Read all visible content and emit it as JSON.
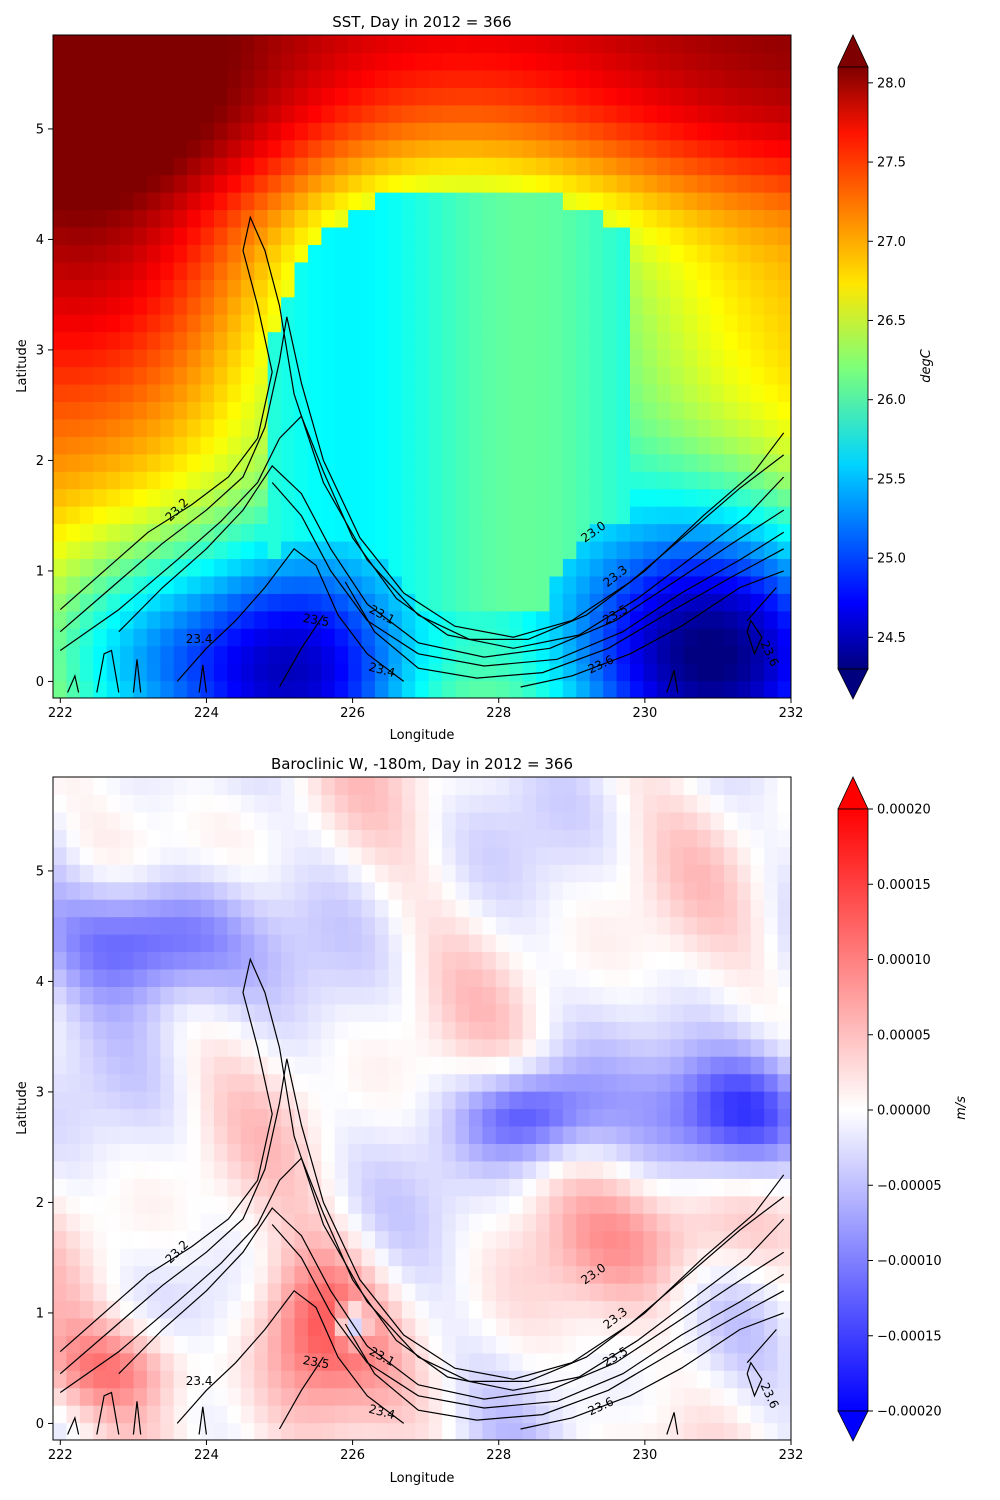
{
  "chart_data": [
    {
      "type": "heatmap",
      "title": "SST, Day in 2012 = 366",
      "xlabel": "Longitude",
      "ylabel": "Latitude",
      "xlim": [
        221.9,
        232.0
      ],
      "ylim": [
        -0.15,
        5.85
      ],
      "xticks": [
        "222",
        "224",
        "226",
        "228",
        "230",
        "232"
      ],
      "yticks": [
        "0",
        "1",
        "2",
        "3",
        "4",
        "5"
      ],
      "colorbar": {
        "label": "degC",
        "colormap": "jet",
        "range": [
          24.3,
          28.1
        ],
        "extend": "both",
        "ticks": [
          "24.5",
          "25.0",
          "25.5",
          "26.0",
          "26.5",
          "27.0",
          "27.5",
          "28.0"
        ]
      },
      "field_description_values": {
        "north_band": 28.0,
        "central_pool": 25.9,
        "southeast_cold": 24.3,
        "southwest_tongue": 24.8
      },
      "contour_labels": [
        "23.0",
        "23.1",
        "23.2",
        "23.3",
        "23.4",
        "23.4",
        "23.5",
        "23.5",
        "23.6",
        "23.6"
      ]
    },
    {
      "type": "heatmap",
      "title": "Baroclinic W, -180m, Day in 2012 = 366",
      "xlabel": "Longitude",
      "ylabel": "Latitude",
      "xlim": [
        221.9,
        232.0
      ],
      "ylim": [
        -0.15,
        5.85
      ],
      "xticks": [
        "222",
        "224",
        "226",
        "228",
        "230",
        "232"
      ],
      "yticks": [
        "0",
        "1",
        "2",
        "3",
        "4",
        "5"
      ],
      "colorbar": {
        "label": "m/s",
        "colormap": "bwr",
        "range": [
          -0.0002,
          0.0002
        ],
        "extend": "both",
        "ticks": [
          "0.00020",
          "0.00015",
          "0.00010",
          "0.00005",
          "0.00000",
          "−0.00005",
          "−0.00010",
          "−0.00015",
          "−0.00020"
        ]
      },
      "contour_labels": [
        "23.0",
        "23.1",
        "23.2",
        "23.3",
        "23.4",
        "23.4",
        "23.5",
        "23.5",
        "23.6",
        "23.6"
      ]
    }
  ]
}
